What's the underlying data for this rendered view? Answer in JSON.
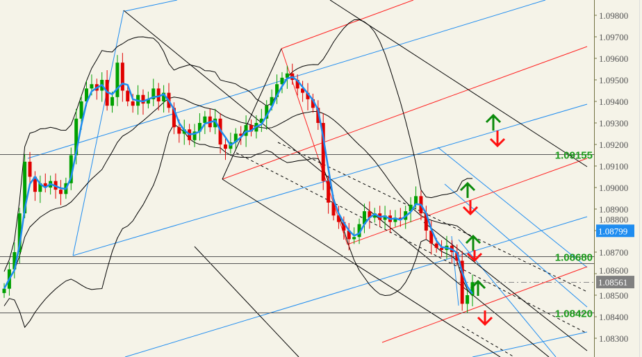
{
  "chart_data": {
    "type": "candlestick",
    "title": "",
    "xlabel": "",
    "ylabel": "",
    "ylim": [
      1.0825,
      1.0987
    ],
    "y_ticks": [
      "1.09800",
      "1.09700",
      "1.09600",
      "1.09500",
      "1.09400",
      "1.09300",
      "1.09200",
      "1.09100",
      "1.09000",
      "1.08900",
      "1.08800",
      "1.08700",
      "1.08600",
      "1.08500",
      "1.08400",
      "1.08300"
    ],
    "grid": false,
    "first_open": 1.0851,
    "closes": [
      1.0853,
      1.0862,
      1.087,
      1.0888,
      1.0912,
      1.0905,
      1.0898,
      1.0902,
      1.09,
      1.0903,
      1.0899,
      1.0897,
      1.0902,
      1.0915,
      1.0932,
      1.094,
      1.0946,
      1.0948,
      1.0945,
      1.095,
      1.0938,
      1.0942,
      1.0958,
      1.0945,
      1.094,
      1.0938,
      1.0943,
      1.0939,
      1.0941,
      1.0946,
      1.094,
      1.0944,
      1.0937,
      1.0928,
      1.0925,
      1.0927,
      1.0922,
      1.0926,
      1.093,
      1.0933,
      1.0928,
      1.0932,
      1.092,
      1.0918,
      1.0921,
      1.0925,
      1.0924,
      1.0929,
      1.0926,
      1.093,
      1.0932,
      1.0938,
      1.0942,
      1.0948,
      1.0951,
      1.0953,
      1.095,
      1.0946,
      1.0944,
      1.0941,
      1.0937,
      1.093,
      1.0903,
      1.0893,
      1.0887,
      1.0884,
      1.088,
      1.0876,
      1.0877,
      1.0883,
      1.0889,
      1.0886,
      1.0888,
      1.0885,
      1.0887,
      1.0884,
      1.0886,
      1.0885,
      1.0889,
      1.0892,
      1.0896,
      1.0888,
      1.088,
      1.0874,
      1.0872,
      1.0871,
      1.0873,
      1.087,
      1.0866,
      1.0846,
      1.085,
      1.0856
    ],
    "horizontal_levels": [
      {
        "price": 1.09155,
        "label": "1.09155"
      },
      {
        "price": 1.0868,
        "label": "1.08680"
      },
      {
        "price": 1.0865,
        "label": ""
      },
      {
        "price": 1.0842,
        "label": "1.08420"
      }
    ],
    "bid_price": {
      "value": 1.08561,
      "label": "1.08561"
    },
    "marker_price": {
      "value": 1.08799,
      "label": "1.08799"
    },
    "colors": {
      "bull": "#00a000",
      "bear": "#e00000",
      "ma": "#1e8cf0",
      "bands": "#000000",
      "level_label": "#1a9a1a",
      "background": "#f5f3e8",
      "marker_tag": "#1e8cf0",
      "bid_tag": "#808080"
    }
  }
}
